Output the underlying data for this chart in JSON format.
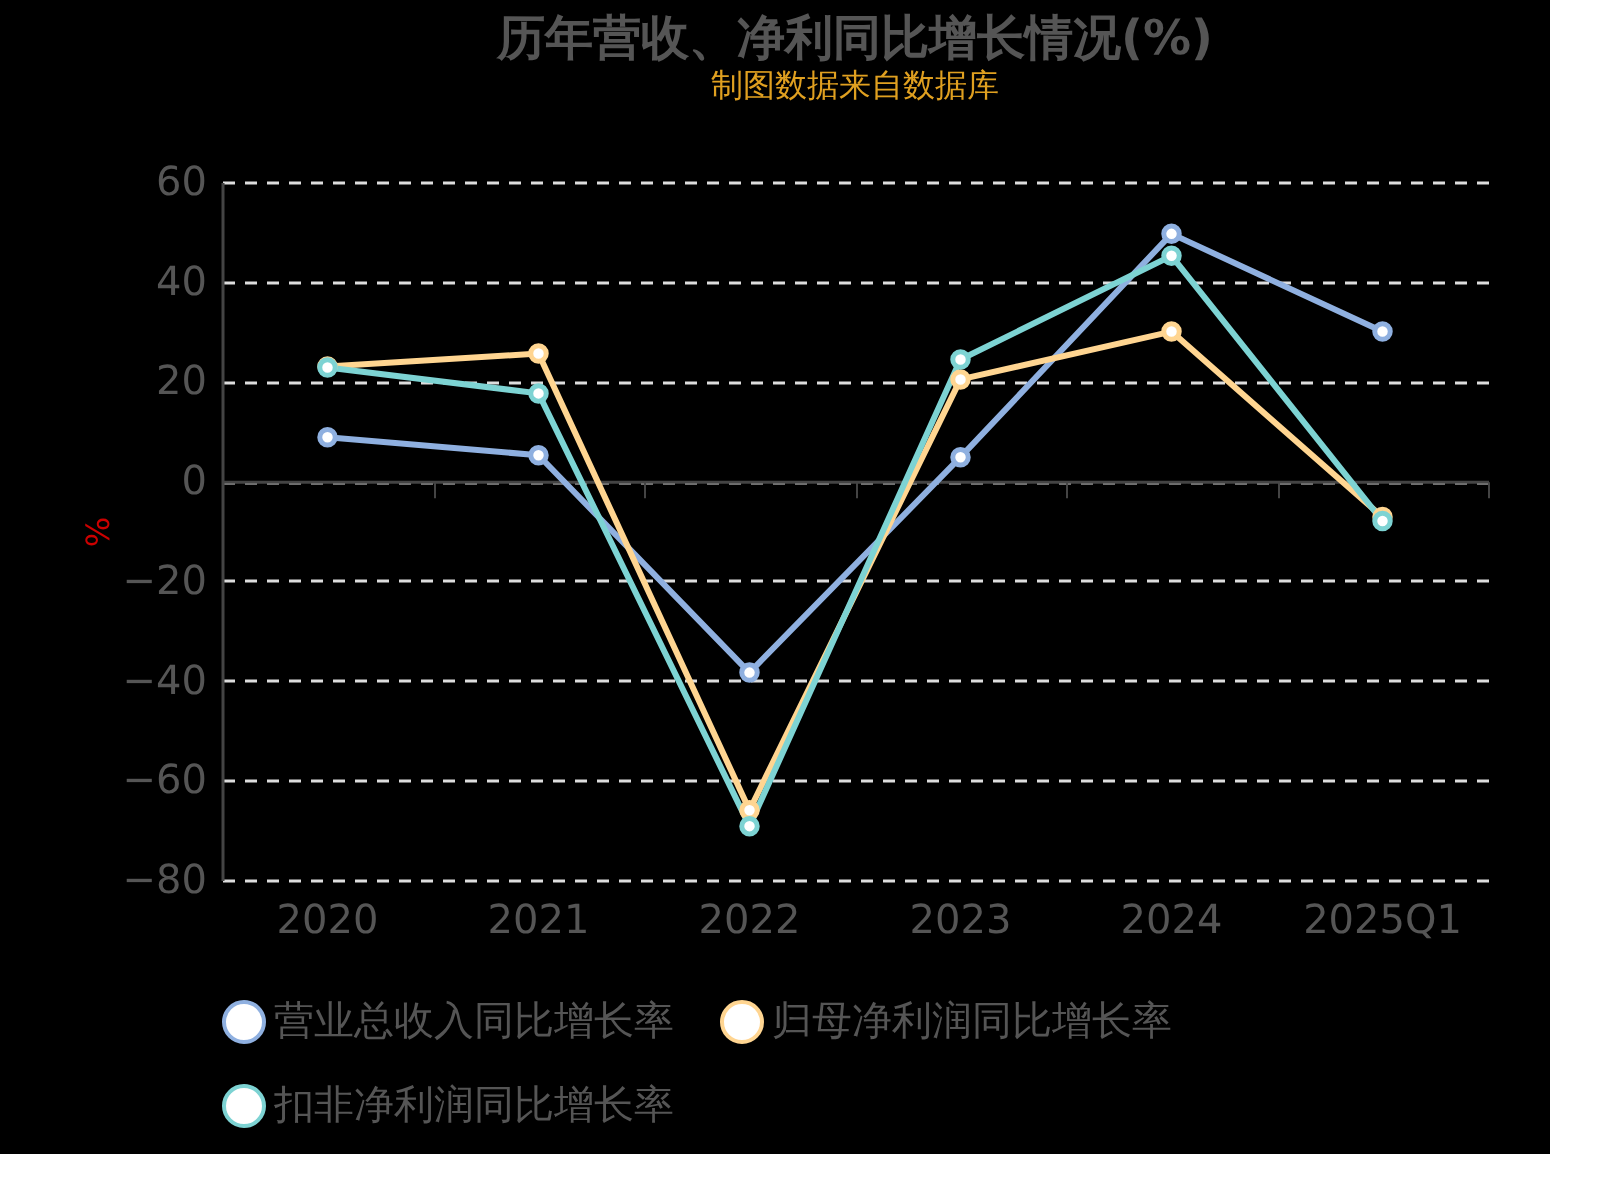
{
  "chart_data": {
    "type": "line",
    "title": "历年营收、净利同比增长情况(%)",
    "ylabel": "%",
    "categories": [
      "2020",
      "2021",
      "2022",
      "2023",
      "2024",
      "2025Q1"
    ],
    "series": [
      {
        "name": "营业总收入同比增长率",
        "color": "#8fb0e0",
        "values": [
          8.8,
          5.2,
          -38.4,
          4.8,
          49.6,
          30
        ]
      },
      {
        "name": "归母净利润同比增长率",
        "color": "#ffd591",
        "values": [
          23,
          25.6,
          -66,
          20.4,
          30,
          -7.2
        ]
      },
      {
        "name": "扣非净利润同比增长率",
        "color": "#7dd3d3",
        "values": [
          22.8,
          17.6,
          -69.2,
          24.4,
          45.2,
          -8
        ]
      }
    ],
    "ylim": [
      -80,
      60
    ],
    "yticks": [
      -80,
      -60,
      -40,
      -20,
      0,
      20,
      40,
      60
    ],
    "grid": "y",
    "legend": "bottom",
    "marker": "circle",
    "line_style": "solid",
    "annotations": [
      "制图数据来自数据库"
    ]
  }
}
